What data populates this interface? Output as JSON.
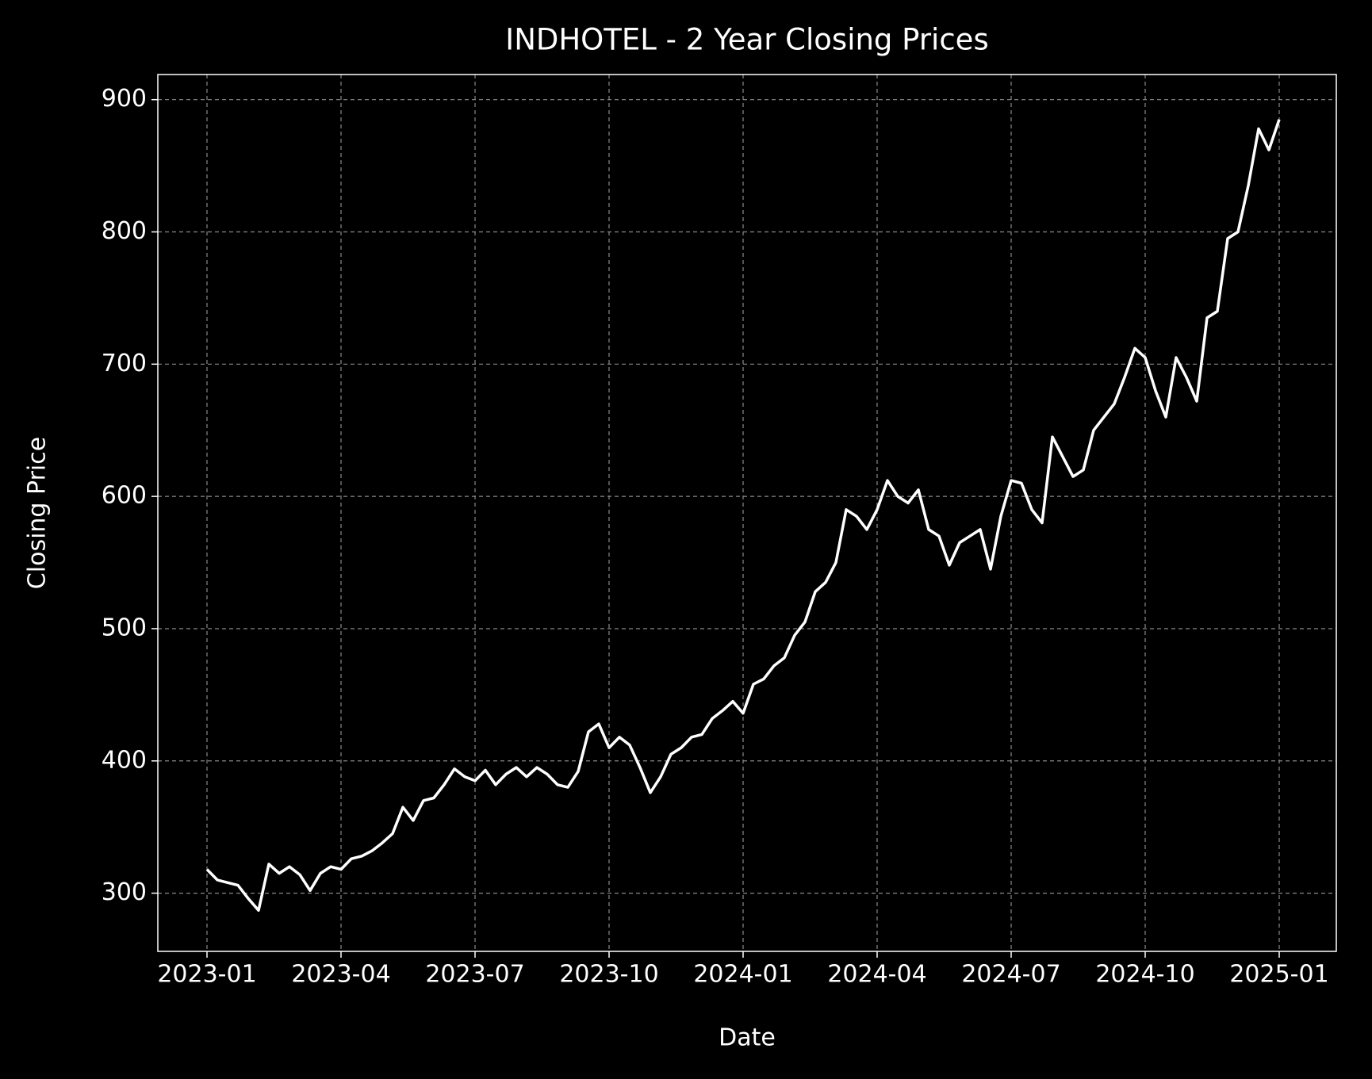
{
  "chart_data": {
    "type": "line",
    "title": "INDHOTEL - 2 Year Closing Prices",
    "x_label": "Date",
    "y_label": "Closing Price",
    "categories": [
      "2023-01",
      null,
      null,
      null,
      null,
      null,
      null,
      null,
      null,
      null,
      null,
      null,
      null,
      "2023-04",
      null,
      null,
      null,
      null,
      null,
      null,
      null,
      null,
      null,
      null,
      null,
      null,
      "2023-07",
      null,
      null,
      null,
      null,
      null,
      null,
      null,
      null,
      null,
      null,
      null,
      null,
      "2023-10",
      null,
      null,
      null,
      null,
      null,
      null,
      null,
      null,
      null,
      null,
      null,
      null,
      "2024-01",
      null,
      null,
      null,
      null,
      null,
      null,
      null,
      null,
      null,
      null,
      null,
      null,
      "2024-04",
      null,
      null,
      null,
      null,
      null,
      null,
      null,
      null,
      null,
      null,
      null,
      null,
      "2024-07",
      null,
      null,
      null,
      null,
      null,
      null,
      null,
      null,
      null,
      null,
      null,
      null,
      "2024-10",
      null,
      null,
      null,
      null,
      null,
      null,
      null,
      null,
      null,
      null,
      null,
      null,
      "2025-01"
    ],
    "values": [
      318,
      310,
      308,
      306,
      296,
      287,
      322,
      315,
      320,
      314,
      302,
      315,
      320,
      318,
      326,
      328,
      332,
      338,
      345,
      365,
      355,
      370,
      372,
      382,
      394,
      388,
      385,
      393,
      382,
      390,
      395,
      388,
      395,
      390,
      382,
      380,
      392,
      422,
      428,
      410,
      418,
      412,
      395,
      376,
      388,
      405,
      410,
      418,
      420,
      432,
      438,
      445,
      436,
      458,
      462,
      472,
      478,
      495,
      505,
      528,
      535,
      550,
      590,
      585,
      575,
      590,
      612,
      600,
      595,
      605,
      575,
      570,
      548,
      565,
      570,
      575,
      545,
      585,
      612,
      610,
      590,
      580,
      645,
      630,
      615,
      620,
      650,
      660,
      670,
      690,
      712,
      705,
      680,
      660,
      705,
      690,
      672,
      735,
      740,
      795,
      800,
      835,
      878,
      862,
      885
    ],
    "color": "#ffffff",
    "ylim": [
      256,
      919
    ],
    "yticks": [
      300,
      400,
      500,
      600,
      700,
      800,
      900
    ],
    "grid": true
  }
}
